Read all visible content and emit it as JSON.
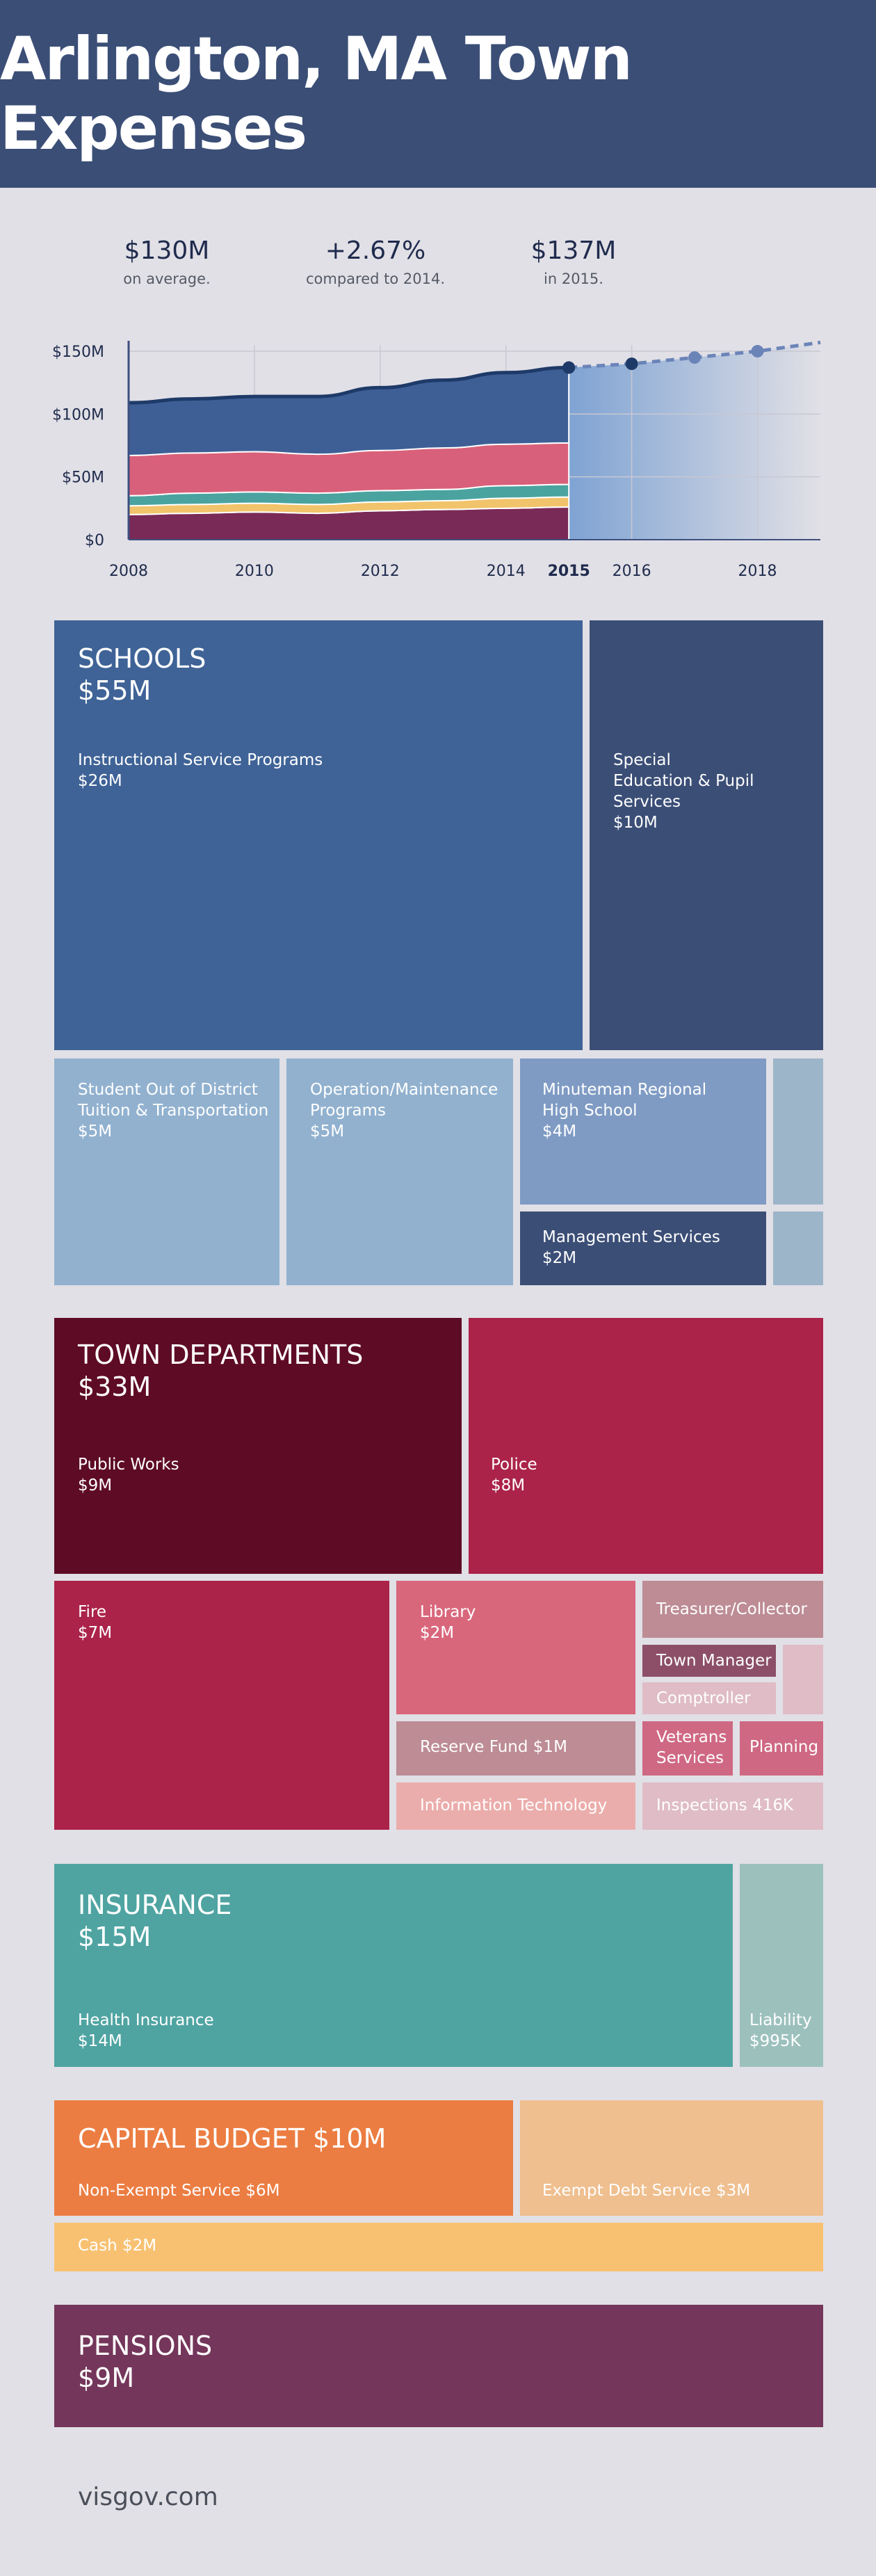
{
  "title": "Arlington, MA Town Expenses",
  "stats": [
    {
      "value": "$130M",
      "label": "on average."
    },
    {
      "value": "+2.67%",
      "label": "compared to 2014."
    },
    {
      "value": "$137M",
      "label": "in 2015."
    }
  ],
  "chart_data": {
    "type": "area",
    "x_ticks": [
      "2008",
      "2010",
      "2012",
      "2014",
      "2015",
      "2016",
      "2018"
    ],
    "y_ticks": [
      "$0",
      "$50M",
      "$100M",
      "$150M"
    ],
    "ylim": [
      0,
      155
    ],
    "xlim": [
      2008,
      2019
    ],
    "x": [
      2008,
      2009,
      2010,
      2011,
      2012,
      2013,
      2014,
      2015
    ],
    "series": [
      {
        "name": "",
        "color": "#7a2a56",
        "values": [
          20,
          21,
          22,
          21,
          23,
          24,
          25,
          26
        ]
      },
      {
        "name": "",
        "color": "#f1c36b",
        "values": [
          7,
          7,
          7,
          7,
          7,
          7,
          8,
          8
        ]
      },
      {
        "name": "",
        "color": "#4aa39f",
        "values": [
          8,
          9,
          9,
          9,
          9,
          9,
          10,
          10
        ]
      },
      {
        "name": "",
        "color": "#d9607a",
        "values": [
          32,
          32,
          32,
          31,
          32,
          33,
          33,
          33
        ]
      },
      {
        "name": "",
        "color": "#3d5f96",
        "values": [
          42,
          43,
          44,
          46,
          50,
          54,
          57,
          60
        ]
      }
    ],
    "projection": {
      "x": [
        2015,
        2016,
        2017,
        2018,
        2019
      ],
      "values": [
        137,
        140,
        145,
        150,
        157
      ],
      "markers": [
        2015,
        2016,
        2017,
        2018
      ]
    },
    "highlight_tick": "2015"
  },
  "sections": {
    "schools": {
      "title": "SCHOOLS\n$55M",
      "instructional": "Instructional Service Programs\n$26M",
      "special": "Special\nEducation & Pupil Services\n$10M",
      "out_of_district": "Student Out of District\nTuition & Transportation\n$5M",
      "operation": "Operation/Maintenance\nPrograms\n$5M",
      "minuteman": "Minuteman Regional\nHigh School\n$4M",
      "management": "Management Services\n$2M"
    },
    "town": {
      "title": "TOWN DEPARTMENTS\n$33M",
      "public_works": "Public Works\n$9M",
      "police": "Police\n$8M",
      "fire": "Fire\n$7M",
      "library": "Library\n$2M",
      "treasurer": "Treasurer/Collector",
      "town_manager": "Town Manager",
      "comptroller": "Comptroller",
      "reserve_fund": "Reserve Fund $1M",
      "veterans": "Veterans\nServices",
      "planning": "Planning",
      "it": "Information Technology",
      "inspections": "Inspections 416K"
    },
    "insurance": {
      "title": "INSURANCE\n$15M",
      "health": "Health Insurance\n$14M",
      "liability": "Liability\n$995K"
    },
    "capital": {
      "title": "CAPITAL BUDGET $10M",
      "non_exempt": "Non-Exempt Service $6M",
      "exempt": "Exempt Debt Service $3M",
      "cash": "Cash $2M"
    },
    "pensions": {
      "title": "PENSIONS\n$9M"
    }
  },
  "footer": "visgov.com"
}
